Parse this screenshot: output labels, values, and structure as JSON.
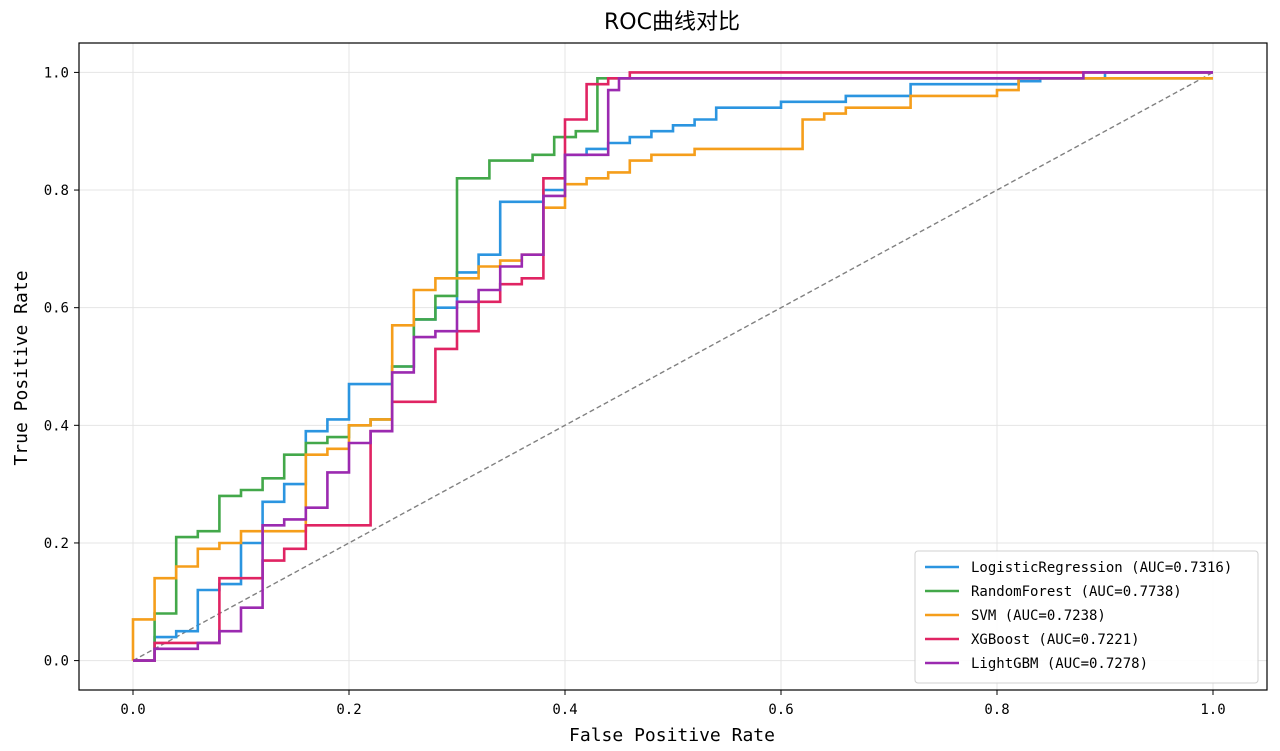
{
  "chart_data": {
    "type": "line",
    "title": "ROC曲线对比",
    "xlabel": "False Positive Rate",
    "ylabel": "True Positive Rate",
    "xlim": [
      -0.05,
      1.05
    ],
    "ylim": [
      -0.05,
      1.05
    ],
    "xticks": [
      "0.0",
      "0.2",
      "0.4",
      "0.6",
      "0.8",
      "1.0"
    ],
    "yticks": [
      "0.0",
      "0.2",
      "0.4",
      "0.6",
      "0.8",
      "1.0"
    ],
    "grid": true,
    "legend_position": "lower-right",
    "diagonal": {
      "x": [
        0,
        1
      ],
      "y": [
        0,
        1
      ],
      "style": "dashed",
      "color": "#808080"
    },
    "series": [
      {
        "name": "LogisticRegression (AUC=0.7316)",
        "color": "#2b95e0",
        "x": [
          0,
          0.02,
          0.02,
          0.04,
          0.04,
          0.06,
          0.06,
          0.08,
          0.08,
          0.1,
          0.1,
          0.12,
          0.12,
          0.14,
          0.14,
          0.16,
          0.16,
          0.18,
          0.18,
          0.2,
          0.2,
          0.22,
          0.22,
          0.24,
          0.24,
          0.26,
          0.26,
          0.28,
          0.28,
          0.3,
          0.3,
          0.32,
          0.32,
          0.34,
          0.34,
          0.36,
          0.36,
          0.38,
          0.38,
          0.4,
          0.4,
          0.42,
          0.42,
          0.44,
          0.44,
          0.46,
          0.46,
          0.48,
          0.48,
          0.5,
          0.5,
          0.52,
          0.52,
          0.54,
          0.54,
          0.56,
          0.56,
          0.6,
          0.6,
          0.66,
          0.66,
          0.72,
          0.72,
          0.82,
          0.82,
          0.84,
          0.84,
          0.9,
          0.9,
          1.0
        ],
        "y": [
          0,
          0,
          0.04,
          0.04,
          0.05,
          0.05,
          0.12,
          0.12,
          0.13,
          0.13,
          0.2,
          0.2,
          0.27,
          0.27,
          0.3,
          0.3,
          0.39,
          0.39,
          0.41,
          0.41,
          0.47,
          0.47,
          0.47,
          0.47,
          0.5,
          0.5,
          0.58,
          0.58,
          0.6,
          0.6,
          0.66,
          0.66,
          0.69,
          0.69,
          0.78,
          0.78,
          0.78,
          0.78,
          0.8,
          0.8,
          0.86,
          0.86,
          0.87,
          0.87,
          0.88,
          0.88,
          0.89,
          0.89,
          0.9,
          0.9,
          0.91,
          0.91,
          0.92,
          0.92,
          0.94,
          0.94,
          0.94,
          0.94,
          0.95,
          0.95,
          0.96,
          0.96,
          0.98,
          0.98,
          0.985,
          0.985,
          0.99,
          0.99,
          1.0,
          1.0
        ]
      },
      {
        "name": "RandomForest (AUC=0.7738)",
        "color": "#43a84a",
        "x": [
          0,
          0.02,
          0.02,
          0.04,
          0.04,
          0.06,
          0.06,
          0.08,
          0.08,
          0.1,
          0.1,
          0.12,
          0.12,
          0.14,
          0.14,
          0.16,
          0.16,
          0.18,
          0.18,
          0.2,
          0.2,
          0.22,
          0.22,
          0.24,
          0.24,
          0.26,
          0.26,
          0.28,
          0.28,
          0.3,
          0.3,
          0.31,
          0.31,
          0.33,
          0.33,
          0.35,
          0.35,
          0.37,
          0.37,
          0.39,
          0.39,
          0.41,
          0.41,
          0.43,
          0.43,
          0.45,
          0.45,
          1.0
        ],
        "y": [
          0,
          0,
          0.08,
          0.08,
          0.21,
          0.21,
          0.22,
          0.22,
          0.28,
          0.28,
          0.29,
          0.29,
          0.31,
          0.31,
          0.35,
          0.35,
          0.37,
          0.37,
          0.38,
          0.38,
          0.4,
          0.4,
          0.41,
          0.41,
          0.5,
          0.5,
          0.58,
          0.58,
          0.62,
          0.62,
          0.82,
          0.82,
          0.82,
          0.82,
          0.85,
          0.85,
          0.85,
          0.85,
          0.86,
          0.86,
          0.89,
          0.89,
          0.9,
          0.9,
          0.99,
          0.99,
          0.99,
          0.99
        ]
      },
      {
        "name": "SVM (AUC=0.7238)",
        "color": "#f59e1b",
        "x": [
          0,
          0,
          0.02,
          0.02,
          0.04,
          0.04,
          0.06,
          0.06,
          0.08,
          0.08,
          0.1,
          0.1,
          0.16,
          0.16,
          0.18,
          0.18,
          0.2,
          0.2,
          0.22,
          0.22,
          0.24,
          0.24,
          0.26,
          0.26,
          0.28,
          0.28,
          0.3,
          0.3,
          0.32,
          0.32,
          0.34,
          0.34,
          0.36,
          0.36,
          0.38,
          0.38,
          0.4,
          0.4,
          0.42,
          0.42,
          0.44,
          0.44,
          0.46,
          0.46,
          0.48,
          0.48,
          0.52,
          0.52,
          0.6,
          0.6,
          0.62,
          0.62,
          0.64,
          0.64,
          0.66,
          0.66,
          0.72,
          0.72,
          0.74,
          0.74,
          0.8,
          0.8,
          0.82,
          0.82,
          0.9,
          0.9,
          1.0
        ],
        "y": [
          0,
          0.07,
          0.07,
          0.14,
          0.14,
          0.16,
          0.16,
          0.19,
          0.19,
          0.2,
          0.2,
          0.22,
          0.22,
          0.35,
          0.35,
          0.36,
          0.36,
          0.4,
          0.4,
          0.41,
          0.41,
          0.57,
          0.57,
          0.63,
          0.63,
          0.65,
          0.65,
          0.65,
          0.65,
          0.67,
          0.67,
          0.68,
          0.68,
          0.69,
          0.69,
          0.77,
          0.77,
          0.81,
          0.81,
          0.82,
          0.82,
          0.83,
          0.83,
          0.85,
          0.85,
          0.86,
          0.86,
          0.87,
          0.87,
          0.87,
          0.87,
          0.92,
          0.92,
          0.93,
          0.93,
          0.94,
          0.94,
          0.96,
          0.96,
          0.96,
          0.96,
          0.97,
          0.97,
          0.99,
          0.99,
          0.99,
          0.99
        ]
      },
      {
        "name": "XGBoost (AUC=0.7221)",
        "color": "#e02463",
        "x": [
          0,
          0.02,
          0.02,
          0.08,
          0.08,
          0.12,
          0.12,
          0.14,
          0.14,
          0.16,
          0.16,
          0.18,
          0.18,
          0.22,
          0.22,
          0.24,
          0.24,
          0.26,
          0.26,
          0.28,
          0.28,
          0.3,
          0.3,
          0.32,
          0.32,
          0.34,
          0.34,
          0.36,
          0.36,
          0.38,
          0.38,
          0.4,
          0.4,
          0.42,
          0.42,
          0.44,
          0.44,
          0.46,
          0.46,
          1.0
        ],
        "y": [
          0,
          0,
          0.03,
          0.03,
          0.14,
          0.14,
          0.17,
          0.17,
          0.19,
          0.19,
          0.23,
          0.23,
          0.23,
          0.23,
          0.39,
          0.39,
          0.44,
          0.44,
          0.44,
          0.44,
          0.53,
          0.53,
          0.56,
          0.56,
          0.61,
          0.61,
          0.64,
          0.64,
          0.65,
          0.65,
          0.82,
          0.82,
          0.92,
          0.92,
          0.98,
          0.98,
          0.99,
          0.99,
          1.0,
          1.0
        ]
      },
      {
        "name": "LightGBM (AUC=0.7278)",
        "color": "#9b2ab0",
        "x": [
          0,
          0.02,
          0.02,
          0.06,
          0.06,
          0.08,
          0.08,
          0.1,
          0.1,
          0.12,
          0.12,
          0.14,
          0.14,
          0.16,
          0.16,
          0.18,
          0.18,
          0.2,
          0.2,
          0.22,
          0.22,
          0.24,
          0.24,
          0.26,
          0.26,
          0.28,
          0.28,
          0.3,
          0.3,
          0.32,
          0.32,
          0.34,
          0.34,
          0.36,
          0.36,
          0.38,
          0.38,
          0.4,
          0.4,
          0.42,
          0.42,
          0.44,
          0.44,
          0.45,
          0.45,
          0.88,
          0.88,
          1.0
        ],
        "y": [
          0,
          0,
          0.02,
          0.02,
          0.03,
          0.03,
          0.05,
          0.05,
          0.09,
          0.09,
          0.23,
          0.23,
          0.24,
          0.24,
          0.26,
          0.26,
          0.32,
          0.32,
          0.37,
          0.37,
          0.39,
          0.39,
          0.49,
          0.49,
          0.55,
          0.55,
          0.56,
          0.56,
          0.61,
          0.61,
          0.63,
          0.63,
          0.67,
          0.67,
          0.69,
          0.69,
          0.79,
          0.79,
          0.86,
          0.86,
          0.86,
          0.86,
          0.97,
          0.97,
          0.99,
          0.99,
          1.0,
          1.0
        ]
      }
    ]
  }
}
